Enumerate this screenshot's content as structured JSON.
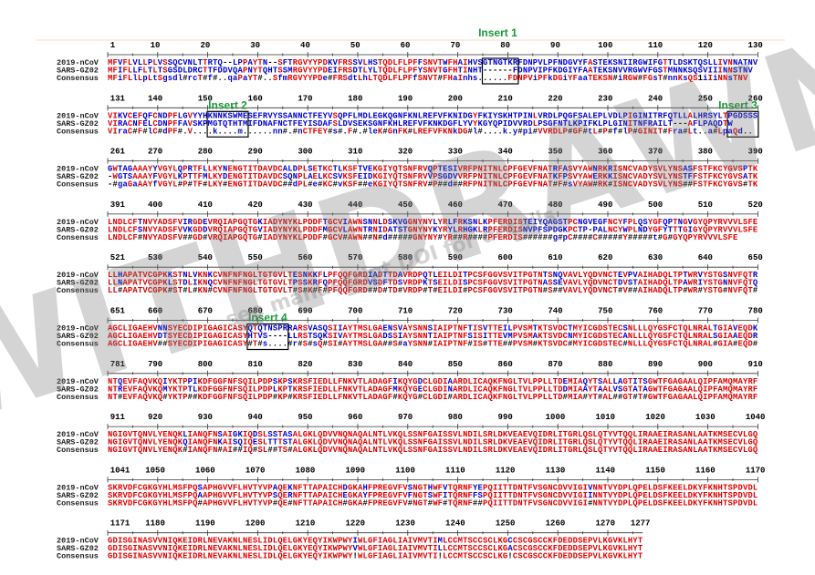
{
  "names": [
    "2019-nCoV",
    "SARS-GZ02",
    "Consensus"
  ],
  "inserts": [
    "Insert 1",
    "Insert 2",
    "Insert 3",
    "Insert 4"
  ],
  "watermark": "WITHDRAWN",
  "watermark_note": "see manuscript DOI for details",
  "blocks": [
    {
      "numbers": [
        1,
        10,
        20,
        30,
        40,
        50,
        60,
        70,
        80,
        90,
        100,
        110,
        120,
        130
      ],
      "rows": [
        "MFVFLVLLPLVSSQCVNLTTRTQ--LPPAYTN--SFTRGVYYPDKVFRSSVLHSTQDLFLPFFSNVTWFHAIHVSGTNGTKRFDNPVLPFNDGVYFASTEKSNIIRGWIFGTTLDSKTQSLLIVNNATNV",
        "MFIFLLFLTLTSGSDLDRCTTFDDVQAPNYTQHTSSMRGVYYPDEIFRSDTLYLTQDLFLPFYSNVTGFHTINHT------FDNPVIPFKDGIYFAATEKSNVVRGWVFGSTMNNKSQSVIIINNSTNV",
        "MFiFLlLpLtSgsdl#rcT#f#..qaPaYT#..SfmRGVYYPDe#FRSdtLhLTQDLFLPFfSNVT#FHaInhs......FDNPViPFkDGiYFaaTEKSN#iRGW#FGsT#nnKsQS1iIiNNsTNV"
      ]
    },
    {
      "numbers": [
        131,
        140,
        150,
        160,
        170,
        180,
        190,
        200,
        210,
        220,
        230,
        240,
        250,
        260
      ],
      "rows": [
        "VIKVCEFQFCNDPFLGVYYHKNNKSWMESEFRVYSSANNCTFEYVSQPFLMDLEGKQGNFKNLREFVFKNIDGYFKIYSKHTPINLVRDLPQGFSALEPLVDLPIGINITRFQTLLALHRSYLTPGDSSS",
        "VIRACNFELCDNPFFAVSKPMGTQTHTMIFDNAFNCTFEYISDAFSLDVSEKSGNFKHLREFVFKNKDGFLYVYKGYQPIDVVRDLPSGFNTLKPIFKLPLGINITNFRAILT---AFLPAQDTW",
        "VIraC#F#lC#dPF#.V....k....m......nn#.#nCTFEY#s#.F#.#leK#GnFK#LREFVFKNkDG#l#....k.y#pi#VVRDLP#GF#tL#P#f#lP#GINIT#Fra#Lt..a#LpaQd.."
      ]
    },
    {
      "numbers": [
        261,
        270,
        280,
        290,
        300,
        310,
        320,
        330,
        340,
        350,
        360,
        370,
        380,
        390
      ],
      "rows": [
        "GWTAGAAAYYVGYLQPRTFLLKYNENGTITDAVDCALDPLSETKCTLKSFTVEKGIYQTSNFRVQPTESIVRFPNITNLCPFGEVFNATRFASVYAWNRKRISNCVADYSVLYNSASFSTFKCYGVSPTK",
        "-WGTSAAAYFVGYLKPTTFMLKYDENGTITDAVDCSQNPLAELKCSVKSFEIDKGIYQTSNFRVVPSGDVVRFPNITNLCPFGEVFNATKFPSVYAWERKKISNCVADYSVLYNSTFFSTFKCYGVSATK",
        "-#gaGaAAYfVGYL#P#TF#LKY#ENGTITDAVDC##dPL#e#KC#vKSF##eKGIYQTSNFRV#P##d##RFPNITNLCPFGEVFNAT#F#sVYAW#RK#ISNCVADYSVLYNS##FSTFKCYGVS#TK"
      ]
    },
    {
      "numbers": [
        391,
        400,
        410,
        420,
        430,
        440,
        450,
        460,
        470,
        480,
        490,
        500,
        510,
        520
      ],
      "rows": [
        "LNDLCFTNVYADSFVIRGDEVRQIAPGQTGKIADYNYKLPDDFTGCVIAWNSNNLDSKVGGNYNYLYRLFRKSNLKPFERDISTEIYQAGSTPCNGVEGFNCYFPLQSYGFQPTNGVGYQPYRVVVLSFE",
        "LNDLCFSNVYADSFVVKGDDVRQIAPGQTGVIADYNYKLPDDFMGCVLAWNTRNIDATSTGNYNYKYRYLRHGKLRPFERDISNVPFSPDGKPCTP-PALNCYWPLNDYGFYTTTGIGYQPYRVVVLSFE",
        "LNDLCF#NVYADSFV##GD#VRQIAPGQTG#IADYNYKLPDDF#GCV#AWN##N#d#####GNYNY#YR##R####PFERDIS######g#pC####C#####Y#####t#G#GYQPYRVVVLSFE"
      ]
    },
    {
      "numbers": [
        521,
        530,
        540,
        550,
        560,
        570,
        580,
        590,
        600,
        610,
        620,
        630,
        640,
        650
      ],
      "rows": [
        "LLHAPATVCGPKKSTNLVKNKCVNFNFNGLTGTGVLTESNKKFLPFQQFGRDIADTTDAVRDPQTLEILDITPCSFGGVSVITPGTNTSNQVAVLYQDVNCTEVPVAIHADQLTPTWRVYSTGSNVFQTR",
        "LLNAPATVCGPKLSTDLIKNQCVNFNFNGLTGTGVLTPSSKRFQPFQQFGRDVSDFTDSVRDPKTSEILDISPCSFGGVSVITPGTNASSEVAVLYQDVNCTDVSTAIHADQLTPAWRIYSTGNNVFQTQ",
        "LL#APATVCGPK#ST#L#KN#CVNFNFNGLTGTGVLT#S#K#F#PFQQFGRD##D#TD#VRDP#T#EILDI#PCSFGGVSVITPGTN#S##VAVLYQDVNCT#V##AIHADQLTP#WR#YSTG#NVFQT#"
      ]
    },
    {
      "numbers": [
        651,
        660,
        670,
        680,
        690,
        700,
        710,
        720,
        730,
        740,
        750,
        760,
        770,
        780
      ],
      "rows": [
        "AGCLIGAEHVNNSYECDIPIGAGICASYQTQTNSPRRARSVASQSIIAYTMSLGAENSVAYSNNSIAIPTNFTISVTTEILPVSMTKTSVDCTMYICGDSTECSNLLLQYGSFCTQLNRALTGIAVEQDK",
        "AGCLIGAEHVDTSYECDIPIGAGICASYHTVS----LLRSTSQKSIVAYTMSLGADSSIAYSNNTIAIPTNFSISITTEVMPVSMAKTSVDCNMYICGDSTECANLLLQYGSFCTQLNRALSGIAAEQDR",
        "AGCLIGAEHV##SYECDIPIGAGICASY#T#s....#r#S#sQ#SI#AYTMSLGA##S#aYSNN#IAIPTNF#IS#TTE##PVSM#KTSVDC#MYICGDSTEC#NLLLQYGSFCTQLNRAL#GIA#EQD#"
      ]
    },
    {
      "numbers": [
        781,
        790,
        800,
        810,
        820,
        830,
        840,
        850,
        860,
        870,
        880,
        890,
        900,
        910
      ],
      "rows": [
        "NTQEVFAQVKQIYKTPPIKDFGGFNFSQILPDPSKPSKRSFIEDLLFNKVTLADAGFIKQYGDCLGDIAARDLICAQKFNGLTVLPPLLTDEMIAQYTSALLAGTITSGWTFGAGAALQIPFAMQMAYRF",
        "NTREVFAQVKQMYKTPTLKDFGGFNFSQILPDPLKPTKRSFIEDLLFNKVTLADAGFMKQYGECLGDINARDLICAQKFNGLTVLPPLLTDDMIAAYTAALVSGTATAGWTFGAGAALQIPFAMQMAYRF",
        "NT#EVFAQVKQ#YKTP##KDFGGFNFSQILPDP#KP#KRSFIEDLLFNKVTLADAGF#KQYG#CLGDI#ARDLICAQKFNGLTVLPPLLTD#MIA#YT#AL##GT#T#GWTFGAGAALQIPFAMQMAYRF"
      ]
    },
    {
      "numbers": [
        911,
        920,
        930,
        940,
        950,
        960,
        970,
        980,
        990,
        1000,
        1010,
        1020,
        1030,
        1040
      ],
      "rows": [
        "NGIGVTQNVLYENQKLIANQFNSAIGKIQDSLSSTASALGKLQDVVNQNAQALNTLVKQLSSNFGAISSVLNDILSRLDKVEAEVQIDRLITGRLQSLQTYVTQQLIRAAEIRASANLAATKMSECVLGQ",
        "NGIGVTQNVLYENQKQIANQFNKAISQIQESLTTTSTALGKLQDVVNQNAQALNTLVKQLSSNFGAISSVLNDILSRLDKVEAEVQIDRLITGRLQSLQTYVTQQLIRAAEIRASANLAATKMSECVLGQ",
        "NGIGVTQNVLYENQK#IANQFN#AI##IQ#SL##TS#ALGKLQDVVNQNAQALNTLVKQLSSNFGAISSVLNDILSRLDKVEAEVQIDRLITGRLQSLQTYVTQQLIRAAEIRASANLAATKMSECVLGQ"
      ]
    },
    {
      "numbers": [
        1041,
        1050,
        1060,
        1070,
        1080,
        1090,
        1100,
        1110,
        1120,
        1130,
        1140,
        1150,
        1160,
        1170
      ],
      "rows": [
        "SKRVDFCGKGYHLMSFPQSAPHGVVFLHVTYVPAQEKNFTTAPAICHDGKAHFPREGVFVSNGTHWFVTQRNFYEPQIITTDNTFVSGNCDVVIGIVNNTVYDPLQPELDSFKEELDKYFKNHTSPDVDL",
        "SKRVDFCGKGYHLMSFPQAAPHGVVFLHVTYVPSQERNFTTAPAICHEGKAYFPREGVFVFNGTSWFITQRNFFSPQIITTDNTFVSGNCDVVIGIINNTVYDPLQPELDSFKEELDKYFKNHTSPDVDL",
        "SKRVDFCGKGYHLMSFPQ#APHGVVFLHVTYVP#QE#NFTTAPAICH#GKA#FPREGVFV#NGT#WF#TQRNF##PQIITTDNTFVSGNCDVVIGI#NNTVYDPLQPELDSFKEELDKYFKNHTSPDVDL"
      ]
    },
    {
      "numbers": [
        1171,
        1180,
        1190,
        1200,
        1210,
        1220,
        1230,
        1240,
        1250,
        1260,
        1270,
        1277
      ],
      "rows": [
        "GDISGINASVVNIQKEIDRLNEVAKNLNESLIDLQELGKYEQYIKWPWYIWLGFIAGLIAIVMVTIMLCCMTSCCSCLKGCCSCGSCCKFDEDDSEPVLKGVKLHYT",
        "GDISGINASVVNIQKEIDRLNEVAKNLNESLIDLQELGKYEQYIKWPWYVWLGFIAGLIAIVMVTILLCCMTSCCSCLKGACSCGSCCKFDEDDSEPVLKGVKLHYT",
        "GDISGINASVVNIQKEIDRLNEVAKNLNESLIDLQELGKYEQYIKWPWY!WLGFIAGLIAIVMVTI!LCCMTSCCSCLKG!CSCGSCCKFDEDDSEPVLKGVKLHYT"
      ]
    }
  ]
}
